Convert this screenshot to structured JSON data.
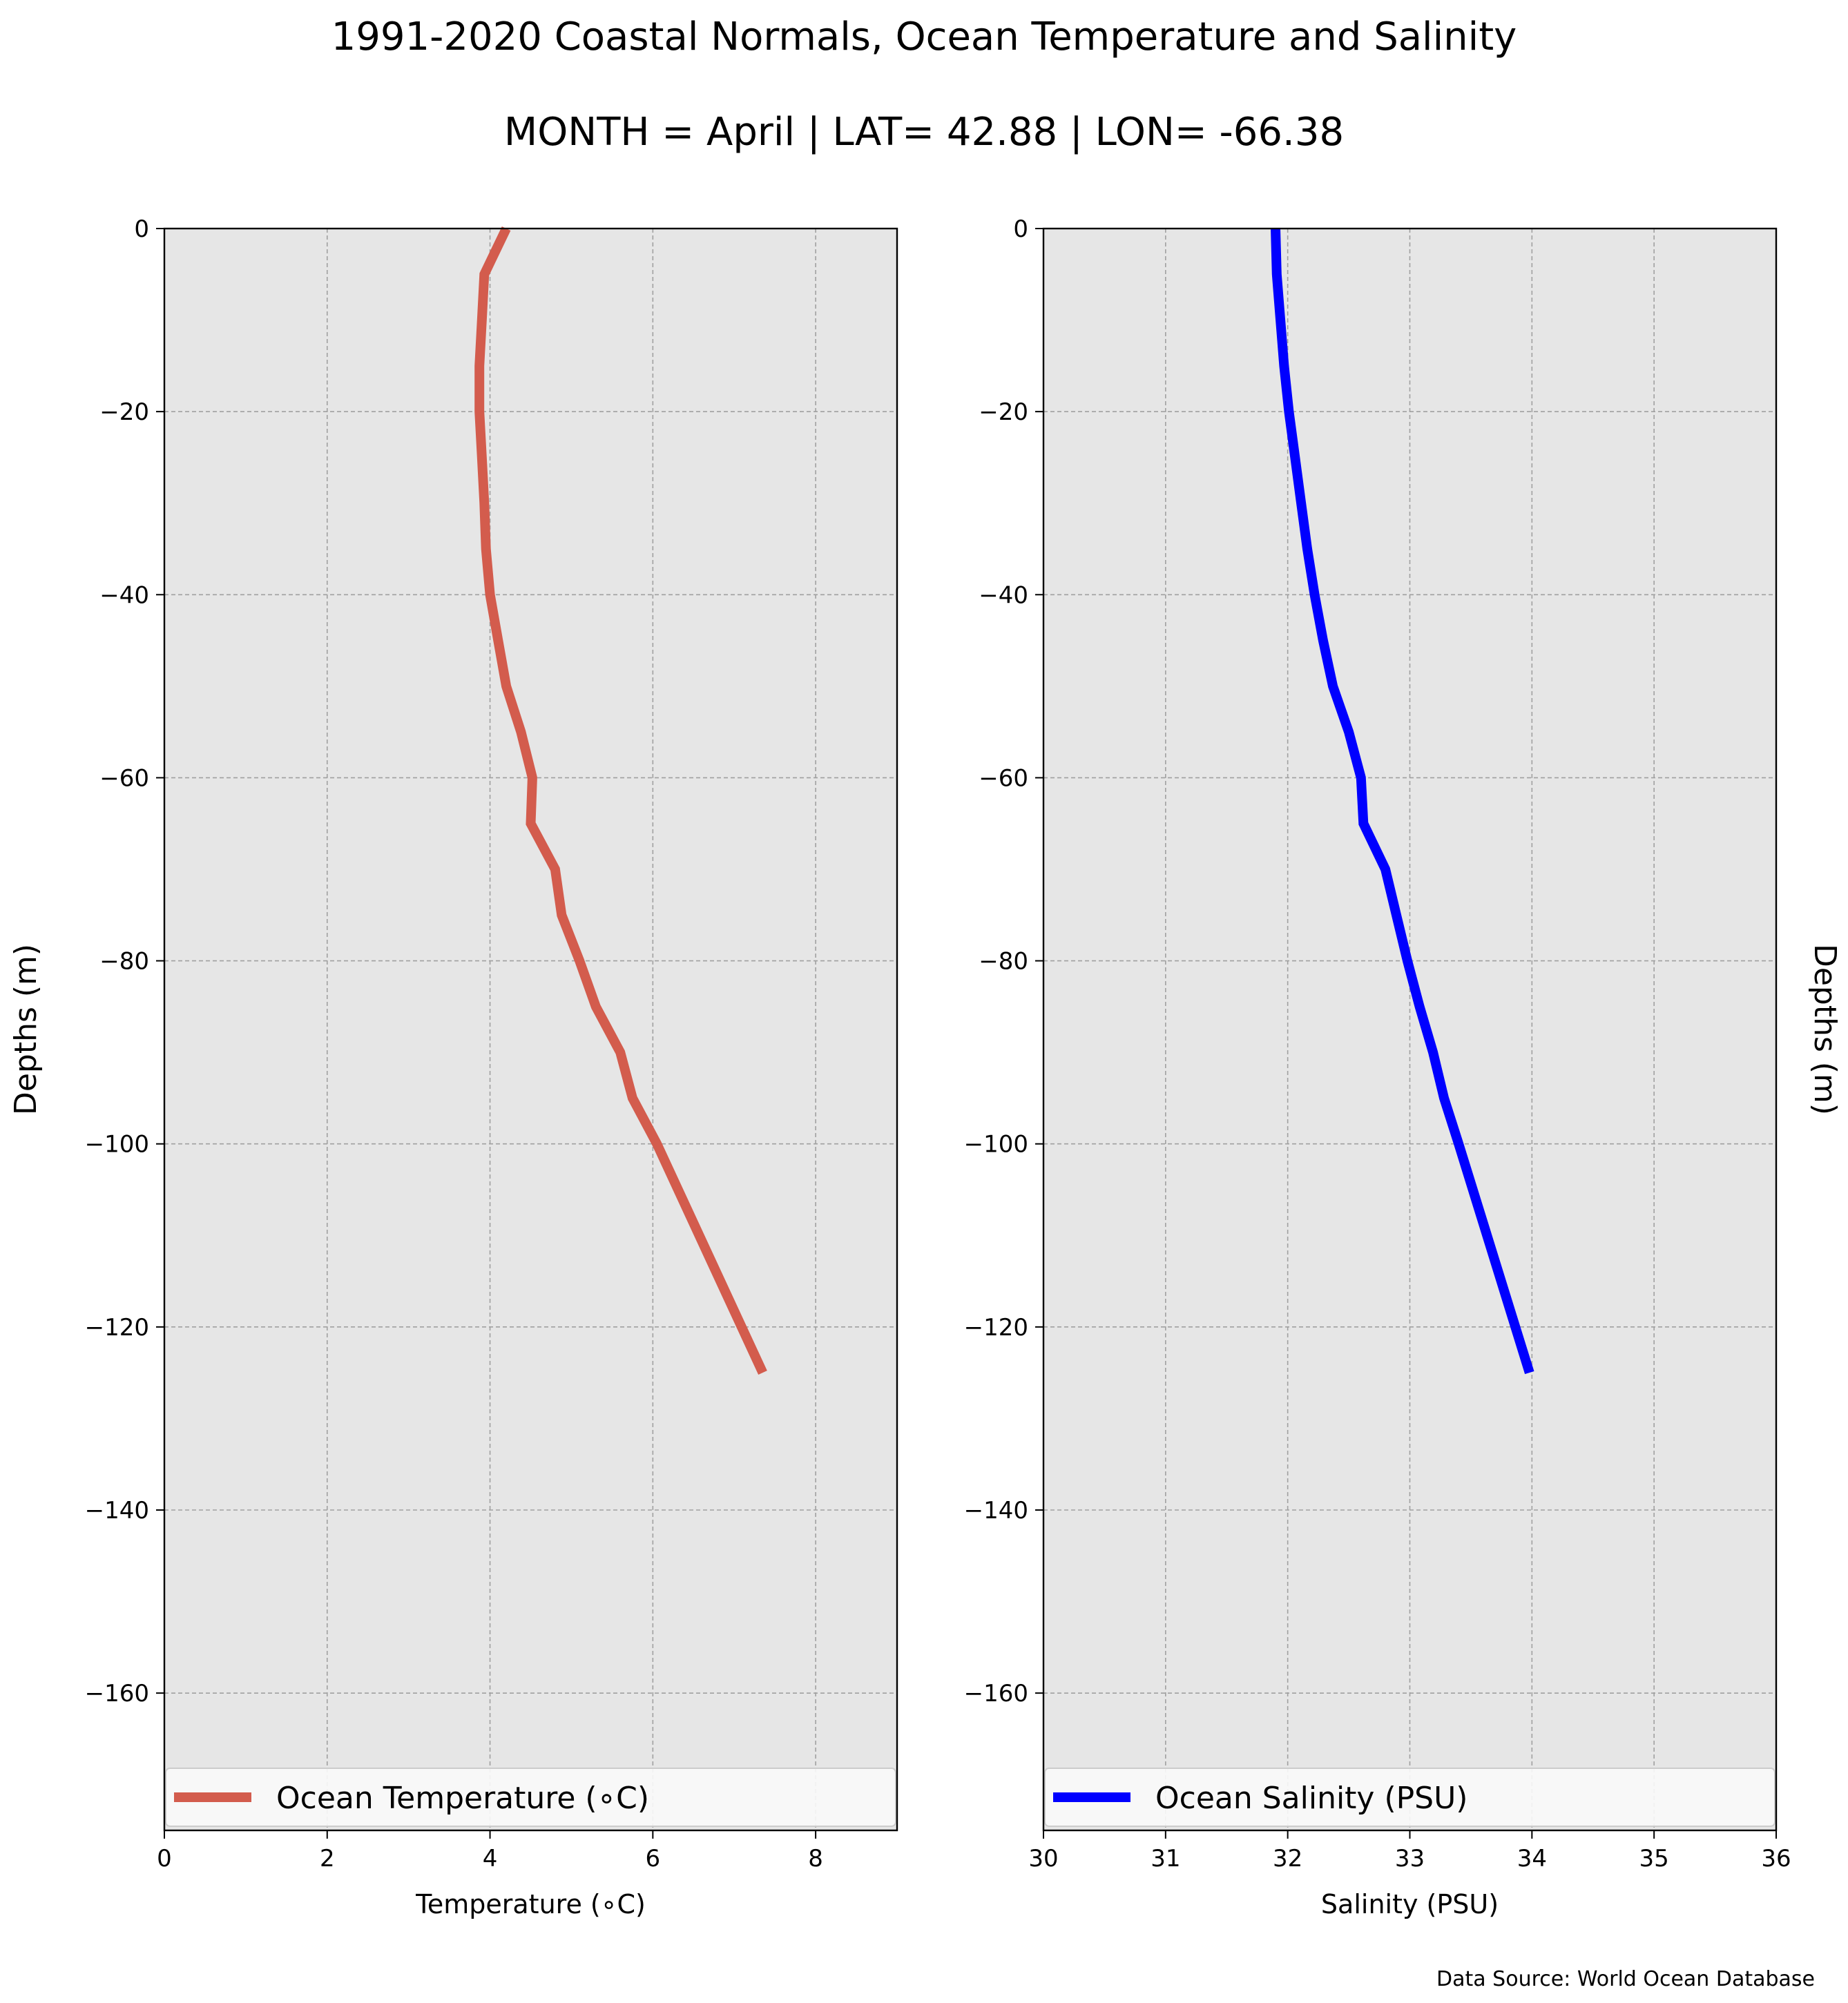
{
  "figure": {
    "title": "1991-2020 Coastal Normals, Ocean Temperature and Salinity",
    "subtitle": "MONTH = April | LAT= 42.88 | LON= -66.38",
    "source_note": "Data Source: World Ocean Database"
  },
  "chart_data": [
    {
      "type": "line",
      "xlabel": "Temperature (∘C)",
      "ylabel": "Depths (m)",
      "xlim": [
        0,
        9
      ],
      "ylim": [
        -175,
        0
      ],
      "xticks": [
        0,
        2,
        4,
        6,
        8
      ],
      "xtick_labels": [
        "0",
        "2",
        "4",
        "6",
        "8"
      ],
      "yticks": [
        0,
        -20,
        -40,
        -60,
        -80,
        -100,
        -120,
        -140,
        -160
      ],
      "ytick_labels": [
        "0",
        "−20",
        "−40",
        "−60",
        "−80",
        "−100",
        "−120",
        "−140",
        "−160"
      ],
      "grid": true,
      "background": "#e6e6e6",
      "legend_position": "bottom",
      "series": [
        {
          "name": "Ocean Temperature (∘C)",
          "color": "#d35c4d",
          "x": [
            4.2,
            3.93,
            3.9,
            3.87,
            3.87,
            3.9,
            3.93,
            3.95,
            4.0,
            4.1,
            4.2,
            4.38,
            4.52,
            4.5,
            4.8,
            4.88,
            5.1,
            5.3,
            5.6,
            5.75,
            6.05,
            7.35
          ],
          "y": [
            0,
            -5,
            -10,
            -15,
            -20,
            -25,
            -30,
            -35,
            -40,
            -45,
            -50,
            -55,
            -60,
            -65,
            -70,
            -75,
            -80,
            -85,
            -90,
            -95,
            -100,
            -125
          ]
        }
      ]
    },
    {
      "type": "line",
      "xlabel": "Salinity (PSU)",
      "ylabel": "Depths (m)",
      "xlim": [
        30,
        36
      ],
      "ylim": [
        -175,
        0
      ],
      "xticks": [
        30,
        31,
        32,
        33,
        34,
        35,
        36
      ],
      "xtick_labels": [
        "30",
        "31",
        "32",
        "33",
        "34",
        "35",
        "36"
      ],
      "yticks": [
        0,
        -20,
        -40,
        -60,
        -80,
        -100,
        -120,
        -140,
        -160
      ],
      "ytick_labels": [
        "0",
        "−20",
        "−40",
        "−60",
        "−80",
        "−100",
        "−120",
        "−140",
        "−160"
      ],
      "grid": true,
      "background": "#e6e6e6",
      "legend_position": "bottom",
      "series": [
        {
          "name": "Ocean Salinity (PSU)",
          "color": "#0000ff",
          "x": [
            31.9,
            31.91,
            31.94,
            31.97,
            32.01,
            32.06,
            32.11,
            32.16,
            32.22,
            32.29,
            32.37,
            32.5,
            32.6,
            32.62,
            32.8,
            32.89,
            32.98,
            33.08,
            33.19,
            33.28,
            33.4,
            33.98
          ],
          "y": [
            0,
            -5,
            -10,
            -15,
            -20,
            -25,
            -30,
            -35,
            -40,
            -45,
            -50,
            -55,
            -60,
            -65,
            -70,
            -75,
            -80,
            -85,
            -90,
            -95,
            -100,
            -125
          ]
        }
      ]
    }
  ]
}
